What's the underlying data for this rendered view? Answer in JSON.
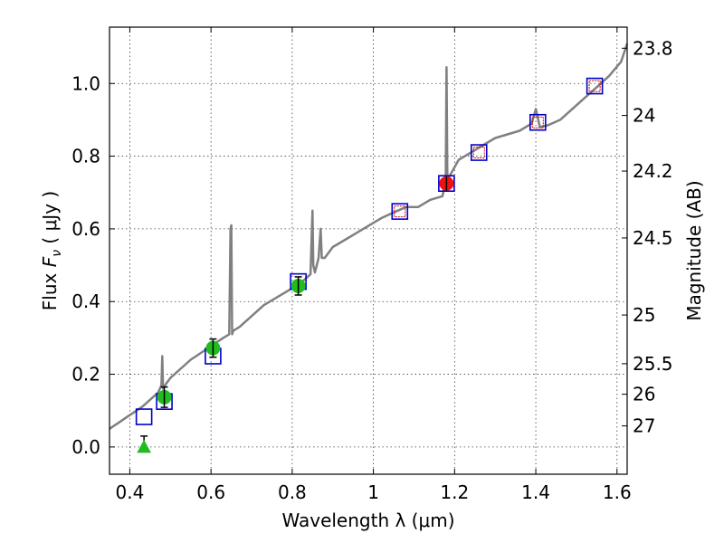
{
  "chart_data": {
    "type": "line",
    "xlabel": "Wavelength  λ (μm)",
    "ylabel": "Flux  F_ν  ( μJy )",
    "ylabel_parts": {
      "pre": "Flux  ",
      "var": "F",
      "sub": "ν",
      "post": "  ( μJy )"
    },
    "y2label": "Magnitude (AB)",
    "xlim": [
      0.35,
      1.625
    ],
    "ylim": [
      -0.075,
      1.155
    ],
    "x_ticks": [
      0.4,
      0.6,
      0.8,
      1.0,
      1.2,
      1.4,
      1.6
    ],
    "x_tick_labels": [
      "0.4",
      "0.6",
      "0.8",
      "1",
      "1.2",
      "1.4",
      "1.6"
    ],
    "y_ticks": [
      0.0,
      0.2,
      0.4,
      0.6,
      0.8,
      1.0
    ],
    "y_tick_labels": [
      "0.0",
      "0.2",
      "0.4",
      "0.6",
      "0.8",
      "1.0"
    ],
    "y2_ticks": [
      {
        "label": "23.8",
        "flux": 1.097
      },
      {
        "label": "24",
        "flux": 0.912
      },
      {
        "label": "24.2",
        "flux": 0.759
      },
      {
        "label": "24.5",
        "flux": 0.575
      },
      {
        "label": "25",
        "flux": 0.363
      },
      {
        "label": "25.5",
        "flux": 0.229
      },
      {
        "label": "26",
        "flux": 0.145
      },
      {
        "label": "27",
        "flux": 0.058
      }
    ],
    "grid": true,
    "colors": {
      "spectrum": "#808080",
      "square_model": "#0000cc",
      "square_obs": "#cc0000",
      "circle_green": "#22bb22",
      "circle_red": "#ee1111",
      "errorbar": "#000000"
    },
    "series": [
      {
        "name": "model spectrum",
        "kind": "line",
        "x": [
          0.35,
          0.37,
          0.39,
          0.41,
          0.43,
          0.45,
          0.47,
          0.478,
          0.48,
          0.482,
          0.49,
          0.5,
          0.51,
          0.53,
          0.55,
          0.57,
          0.59,
          0.61,
          0.63,
          0.645,
          0.648,
          0.65,
          0.652,
          0.655,
          0.67,
          0.7,
          0.73,
          0.76,
          0.79,
          0.82,
          0.845,
          0.85,
          0.852,
          0.856,
          0.865,
          0.87,
          0.873,
          0.88,
          0.9,
          0.93,
          0.96,
          0.99,
          1.02,
          1.05,
          1.08,
          1.11,
          1.14,
          1.17,
          1.178,
          1.18,
          1.182,
          1.185,
          1.21,
          1.24,
          1.27,
          1.3,
          1.33,
          1.36,
          1.39,
          1.4,
          1.41,
          1.43,
          1.46,
          1.49,
          1.52,
          1.55,
          1.58,
          1.61,
          1.625
        ],
        "y": [
          0.05,
          0.065,
          0.08,
          0.095,
          0.11,
          0.13,
          0.15,
          0.17,
          0.25,
          0.16,
          0.175,
          0.19,
          0.2,
          0.22,
          0.24,
          0.255,
          0.27,
          0.285,
          0.3,
          0.31,
          0.6,
          0.61,
          0.31,
          0.32,
          0.33,
          0.36,
          0.39,
          0.41,
          0.43,
          0.45,
          0.475,
          0.65,
          0.5,
          0.48,
          0.52,
          0.6,
          0.52,
          0.52,
          0.55,
          0.57,
          0.59,
          0.61,
          0.63,
          0.645,
          0.66,
          0.66,
          0.68,
          0.69,
          0.73,
          1.045,
          0.75,
          0.74,
          0.79,
          0.81,
          0.83,
          0.85,
          0.86,
          0.87,
          0.89,
          0.93,
          0.88,
          0.885,
          0.9,
          0.93,
          0.96,
          0.99,
          1.02,
          1.06,
          1.11
        ]
      },
      {
        "name": "model photometry",
        "kind": "open-square",
        "x": [
          0.435,
          0.485,
          0.605,
          0.815,
          1.065,
          1.18,
          1.26,
          1.405,
          1.545
        ],
        "y": [
          0.083,
          0.125,
          0.25,
          0.455,
          0.648,
          0.725,
          0.81,
          0.893,
          0.993
        ]
      },
      {
        "name": "observed (open)",
        "kind": "open-square-small",
        "x": [
          1.065,
          1.26,
          1.405,
          1.545
        ],
        "y": [
          0.648,
          0.81,
          0.893,
          0.993
        ]
      },
      {
        "name": "observed (filled)",
        "kind": "circle-errorbar",
        "x": [
          0.485,
          0.605,
          0.815
        ],
        "y": [
          0.137,
          0.272,
          0.443
        ],
        "err": [
          0.028,
          0.025,
          0.025
        ]
      },
      {
        "name": "observed (red)",
        "kind": "red-circle",
        "x": [
          1.18
        ],
        "y": [
          0.725
        ],
        "err": [
          0.02
        ]
      },
      {
        "name": "upper limit",
        "kind": "triangle-errorbar",
        "x": [
          0.435
        ],
        "y": [
          0.0
        ],
        "err": [
          0.03
        ]
      }
    ]
  }
}
